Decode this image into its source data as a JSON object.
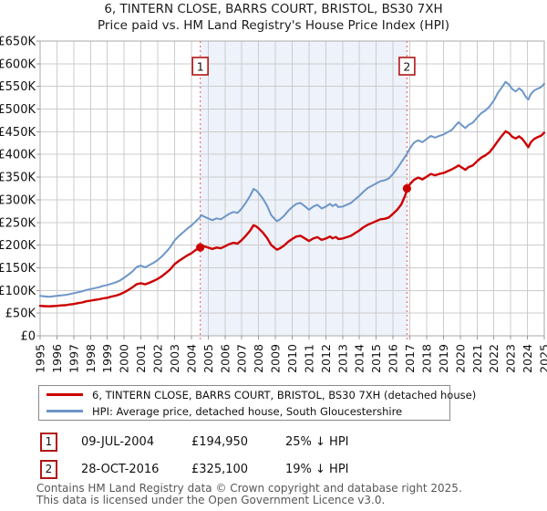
{
  "title": {
    "line1": "6, TINTERN CLOSE, BARRS COURT, BRISTOL, BS30 7XH",
    "line2": "Price paid vs. HM Land Registry's House Price Index (HPI)"
  },
  "legend": {
    "items": [
      {
        "name": "price-paid",
        "label": "6, TINTERN CLOSE, BARRS COURT, BRISTOL, BS30 7XH (detached house)",
        "color": "#cc0000"
      },
      {
        "name": "hpi",
        "label": "HPI: Average price, detached house, South Gloucestershire",
        "color": "#6d96c8"
      }
    ]
  },
  "sales": [
    {
      "num": "1",
      "date": "09-JUL-2004",
      "price": "£194,950",
      "vs_hpi": "25% ↓ HPI",
      "year": 2004.53,
      "value_gbp": 194950
    },
    {
      "num": "2",
      "date": "28-OCT-2016",
      "price": "£325,100",
      "vs_hpi": "19% ↓ HPI",
      "year": 2016.83,
      "value_gbp": 325100
    }
  ],
  "footer": {
    "line1": "Contains HM Land Registry data © Crown copyright and database right 2025.",
    "line2": "This data is licensed under the Open Government Licence v3.0."
  },
  "colors": {
    "price_paid_line": "#cc0000",
    "hpi_line": "#6d96c8",
    "shaded_band": "#eef2fa",
    "grid": "#cccccc",
    "plot_border": "#aaaaaa",
    "axis_tick": "#999999",
    "dotted_event_line": "#e57373",
    "flag_border": "#b11515",
    "footer_text": "#575757"
  },
  "chart_data": {
    "type": "line",
    "title": "6, TINTERN CLOSE, BARRS COURT, BRISTOL, BS30 7XH",
    "subtitle": "Price paid vs. HM Land Registry's House Price Index (HPI)",
    "xlabel": "",
    "ylabel": "",
    "units": "GBP thousands",
    "x_range": [
      1995,
      2025
    ],
    "y_range": [
      0,
      650
    ],
    "grid": true,
    "legend_position": "bottom",
    "shaded_span": {
      "from_year": 2004.53,
      "to_year": 2016.83
    },
    "y_ticks": [
      {
        "v": 650,
        "label": "£650K"
      },
      {
        "v": 600,
        "label": "£600K"
      },
      {
        "v": 550,
        "label": "£550K"
      },
      {
        "v": 500,
        "label": "£500K"
      },
      {
        "v": 450,
        "label": "£450K"
      },
      {
        "v": 400,
        "label": "£400K"
      },
      {
        "v": 350,
        "label": "£350K"
      },
      {
        "v": 300,
        "label": "£300K"
      },
      {
        "v": 250,
        "label": "£250K"
      },
      {
        "v": 200,
        "label": "£200K"
      },
      {
        "v": 150,
        "label": "£150K"
      },
      {
        "v": 100,
        "label": "£100K"
      },
      {
        "v": 50,
        "label": "£50K"
      },
      {
        "v": 0,
        "label": "£0"
      }
    ],
    "x_ticks": [
      1995,
      1996,
      1997,
      1998,
      1999,
      2000,
      2001,
      2002,
      2003,
      2004,
      2005,
      2006,
      2007,
      2008,
      2009,
      2010,
      2011,
      2012,
      2013,
      2014,
      2015,
      2016,
      2017,
      2018,
      2019,
      2020,
      2021,
      2022,
      2023,
      2024,
      2025
    ],
    "markers": [
      {
        "num": "1",
        "x": 2004.53,
        "y": 194.95
      },
      {
        "num": "2",
        "x": 2016.83,
        "y": 325.1
      }
    ],
    "series": [
      {
        "name": "HPI: Average price, detached house, South Gloucestershire",
        "color": "#6d96c8",
        "width": 2,
        "points": [
          [
            1995,
            88
          ],
          [
            1995.25,
            87
          ],
          [
            1995.5,
            86
          ],
          [
            1995.75,
            87
          ],
          [
            1996,
            88
          ],
          [
            1996.25,
            89
          ],
          [
            1996.5,
            90
          ],
          [
            1996.75,
            92
          ],
          [
            1997,
            94
          ],
          [
            1997.25,
            96
          ],
          [
            1997.5,
            98
          ],
          [
            1997.75,
            101
          ],
          [
            1998,
            103
          ],
          [
            1998.25,
            105
          ],
          [
            1998.5,
            107
          ],
          [
            1998.75,
            110
          ],
          [
            1999,
            112
          ],
          [
            1999.25,
            115
          ],
          [
            1999.5,
            118
          ],
          [
            1999.75,
            122
          ],
          [
            2000,
            128
          ],
          [
            2000.25,
            135
          ],
          [
            2000.5,
            142
          ],
          [
            2000.75,
            152
          ],
          [
            2001,
            155
          ],
          [
            2001.25,
            151
          ],
          [
            2001.5,
            156
          ],
          [
            2001.75,
            161
          ],
          [
            2002,
            167
          ],
          [
            2002.25,
            175
          ],
          [
            2002.5,
            185
          ],
          [
            2002.75,
            196
          ],
          [
            2003,
            210
          ],
          [
            2003.25,
            220
          ],
          [
            2003.5,
            228
          ],
          [
            2003.75,
            236
          ],
          [
            2004,
            243
          ],
          [
            2004.25,
            252
          ],
          [
            2004.5,
            261
          ],
          [
            2004.6,
            266
          ],
          [
            2004.75,
            263
          ],
          [
            2005,
            259
          ],
          [
            2005.25,
            255
          ],
          [
            2005.5,
            259
          ],
          [
            2005.75,
            257
          ],
          [
            2006,
            263
          ],
          [
            2006.25,
            269
          ],
          [
            2006.5,
            273
          ],
          [
            2006.75,
            271
          ],
          [
            2007,
            281
          ],
          [
            2007.25,
            294
          ],
          [
            2007.5,
            309
          ],
          [
            2007.7,
            324
          ],
          [
            2007.85,
            321
          ],
          [
            2008,
            315
          ],
          [
            2008.25,
            303
          ],
          [
            2008.5,
            287
          ],
          [
            2008.75,
            266
          ],
          [
            2009,
            256
          ],
          [
            2009.1,
            253
          ],
          [
            2009.25,
            256
          ],
          [
            2009.5,
            264
          ],
          [
            2009.75,
            275
          ],
          [
            2010,
            284
          ],
          [
            2010.25,
            291
          ],
          [
            2010.5,
            293
          ],
          [
            2010.75,
            286
          ],
          [
            2011,
            278
          ],
          [
            2011.25,
            285
          ],
          [
            2011.5,
            289
          ],
          [
            2011.75,
            281
          ],
          [
            2012,
            285
          ],
          [
            2012.25,
            291
          ],
          [
            2012.4,
            286
          ],
          [
            2012.6,
            290
          ],
          [
            2012.75,
            284
          ],
          [
            2013,
            285
          ],
          [
            2013.25,
            289
          ],
          [
            2013.5,
            293
          ],
          [
            2013.75,
            301
          ],
          [
            2014,
            309
          ],
          [
            2014.25,
            318
          ],
          [
            2014.5,
            326
          ],
          [
            2014.75,
            331
          ],
          [
            2015,
            336
          ],
          [
            2015.25,
            341
          ],
          [
            2015.5,
            343
          ],
          [
            2015.75,
            347
          ],
          [
            2016,
            357
          ],
          [
            2016.25,
            369
          ],
          [
            2016.5,
            383
          ],
          [
            2016.83,
            401
          ],
          [
            2017,
            413
          ],
          [
            2017.25,
            426
          ],
          [
            2017.5,
            431
          ],
          [
            2017.75,
            427
          ],
          [
            2018,
            434
          ],
          [
            2018.25,
            441
          ],
          [
            2018.5,
            437
          ],
          [
            2018.75,
            441
          ],
          [
            2019,
            444
          ],
          [
            2019.25,
            449
          ],
          [
            2019.5,
            454
          ],
          [
            2019.75,
            465
          ],
          [
            2019.9,
            471
          ],
          [
            2020.1,
            464
          ],
          [
            2020.3,
            458
          ],
          [
            2020.5,
            465
          ],
          [
            2020.75,
            470
          ],
          [
            2021,
            481
          ],
          [
            2021.25,
            491
          ],
          [
            2021.5,
            497
          ],
          [
            2021.75,
            506
          ],
          [
            2022,
            519
          ],
          [
            2022.25,
            536
          ],
          [
            2022.5,
            549
          ],
          [
            2022.7,
            560
          ],
          [
            2022.9,
            554
          ],
          [
            2023.1,
            544
          ],
          [
            2023.3,
            539
          ],
          [
            2023.5,
            546
          ],
          [
            2023.7,
            540
          ],
          [
            2023.9,
            527
          ],
          [
            2024.05,
            521
          ],
          [
            2024.2,
            533
          ],
          [
            2024.4,
            541
          ],
          [
            2024.6,
            545
          ],
          [
            2024.8,
            548
          ],
          [
            2025,
            556
          ]
        ]
      },
      {
        "name": "6, TINTERN CLOSE, BARRS COURT, BRISTOL, BS30 7XH (detached house)",
        "color": "#cc0000",
        "width": 2.4,
        "points": [
          [
            1995,
            66
          ],
          [
            1995.25,
            65.5
          ],
          [
            1995.5,
            65
          ],
          [
            1995.75,
            65.5
          ],
          [
            1996,
            66
          ],
          [
            1996.25,
            67
          ],
          [
            1996.5,
            67.5
          ],
          [
            1996.75,
            69
          ],
          [
            1997,
            70
          ],
          [
            1997.25,
            72
          ],
          [
            1997.5,
            73.5
          ],
          [
            1997.75,
            76
          ],
          [
            1998,
            77.5
          ],
          [
            1998.25,
            79
          ],
          [
            1998.5,
            80.5
          ],
          [
            1998.75,
            82.5
          ],
          [
            1999,
            84
          ],
          [
            1999.25,
            86.5
          ],
          [
            1999.5,
            88.5
          ],
          [
            1999.75,
            91.5
          ],
          [
            2000,
            96
          ],
          [
            2000.25,
            101
          ],
          [
            2000.5,
            107
          ],
          [
            2000.75,
            114
          ],
          [
            2001,
            116
          ],
          [
            2001.25,
            113.5
          ],
          [
            2001.5,
            117
          ],
          [
            2001.75,
            121
          ],
          [
            2002,
            125.5
          ],
          [
            2002.25,
            131.5
          ],
          [
            2002.5,
            139
          ],
          [
            2002.75,
            147
          ],
          [
            2003,
            158
          ],
          [
            2003.25,
            165
          ],
          [
            2003.5,
            171
          ],
          [
            2003.75,
            177
          ],
          [
            2004,
            182
          ],
          [
            2004.25,
            189
          ],
          [
            2004.53,
            195
          ],
          [
            2004.6,
            199.5
          ],
          [
            2004.75,
            197.5
          ],
          [
            2005,
            194.5
          ],
          [
            2005.25,
            191.5
          ],
          [
            2005.5,
            194.5
          ],
          [
            2005.75,
            193
          ],
          [
            2006,
            197.5
          ],
          [
            2006.25,
            202
          ],
          [
            2006.5,
            205
          ],
          [
            2006.75,
            203.5
          ],
          [
            2007,
            211
          ],
          [
            2007.25,
            221
          ],
          [
            2007.5,
            232
          ],
          [
            2007.7,
            244
          ],
          [
            2007.85,
            241.5
          ],
          [
            2008,
            237
          ],
          [
            2008.25,
            228
          ],
          [
            2008.5,
            216
          ],
          [
            2008.75,
            200
          ],
          [
            2009,
            192.5
          ],
          [
            2009.1,
            190
          ],
          [
            2009.25,
            192.5
          ],
          [
            2009.5,
            198.5
          ],
          [
            2009.75,
            207
          ],
          [
            2010,
            213.5
          ],
          [
            2010.25,
            219
          ],
          [
            2010.5,
            220.5
          ],
          [
            2010.75,
            215
          ],
          [
            2011,
            209
          ],
          [
            2011.25,
            214.5
          ],
          [
            2011.5,
            217.5
          ],
          [
            2011.75,
            211.5
          ],
          [
            2012,
            214.5
          ],
          [
            2012.25,
            219
          ],
          [
            2012.4,
            215
          ],
          [
            2012.6,
            218
          ],
          [
            2012.75,
            213.5
          ],
          [
            2013,
            214.5
          ],
          [
            2013.25,
            217.5
          ],
          [
            2013.5,
            220.5
          ],
          [
            2013.75,
            226.5
          ],
          [
            2014,
            232.5
          ],
          [
            2014.25,
            239.5
          ],
          [
            2014.5,
            245
          ],
          [
            2014.75,
            249
          ],
          [
            2015,
            253
          ],
          [
            2015.25,
            257
          ],
          [
            2015.5,
            258
          ],
          [
            2015.75,
            261
          ],
          [
            2016,
            269
          ],
          [
            2016.25,
            278
          ],
          [
            2016.5,
            290
          ],
          [
            2016.75,
            312
          ],
          [
            2016.83,
            325.1
          ],
          [
            2017,
            334
          ],
          [
            2017.25,
            344
          ],
          [
            2017.5,
            349
          ],
          [
            2017.75,
            345
          ],
          [
            2018,
            351
          ],
          [
            2018.25,
            357
          ],
          [
            2018.5,
            354
          ],
          [
            2018.75,
            357
          ],
          [
            2019,
            359
          ],
          [
            2019.25,
            363
          ],
          [
            2019.5,
            367
          ],
          [
            2019.75,
            372
          ],
          [
            2019.9,
            376
          ],
          [
            2020.1,
            371
          ],
          [
            2020.3,
            366
          ],
          [
            2020.5,
            372
          ],
          [
            2020.75,
            376
          ],
          [
            2021,
            385
          ],
          [
            2021.25,
            393
          ],
          [
            2021.5,
            398
          ],
          [
            2021.75,
            405
          ],
          [
            2022,
            417
          ],
          [
            2022.25,
            430
          ],
          [
            2022.5,
            442
          ],
          [
            2022.7,
            451
          ],
          [
            2022.9,
            447
          ],
          [
            2023.1,
            439
          ],
          [
            2023.3,
            435
          ],
          [
            2023.5,
            440
          ],
          [
            2023.7,
            434
          ],
          [
            2023.9,
            424
          ],
          [
            2024.05,
            416
          ],
          [
            2024.2,
            427
          ],
          [
            2024.4,
            434
          ],
          [
            2024.6,
            438
          ],
          [
            2024.8,
            441
          ],
          [
            2025,
            448
          ]
        ]
      }
    ]
  }
}
